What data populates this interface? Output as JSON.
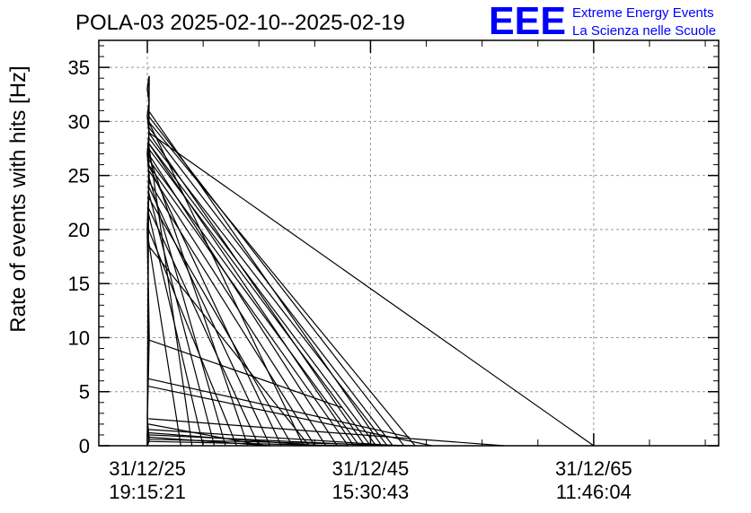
{
  "chart_data": {
    "type": "line",
    "title": "POLA-03 2025-02-10--2025-02-19",
    "ylabel": "Rate of events with hits [Hz]",
    "xlabel": "",
    "ylim": [
      0,
      37.5
    ],
    "yticks": [
      0,
      5,
      10,
      15,
      20,
      25,
      30,
      35
    ],
    "xlim_years": [
      2020.65,
      2076.2
    ],
    "xticks": [
      {
        "year": 2025,
        "date": "31/12/25",
        "time": "19:15:21"
      },
      {
        "year": 2045,
        "date": "31/12/45",
        "time": "15:30:43"
      },
      {
        "year": 2065,
        "date": "31/12/65",
        "time": "11:46:04"
      }
    ],
    "grid": true,
    "grid_style": "dashed",
    "line_color": "#000000",
    "series_note": "",
    "spike": {
      "x_year": 2025.0,
      "values": [
        0,
        34.2,
        33.0,
        31.8,
        30.5,
        29.0,
        27.0,
        25.0,
        20.0,
        10.0,
        2.5,
        0.5,
        0
      ]
    },
    "segments": [
      {
        "x0": 2025.1,
        "y0": 29.0,
        "x1": 2065.0,
        "y1": 0
      },
      {
        "x0": 2025.1,
        "y0": 30.0,
        "x1": 2049.0,
        "y1": 0
      },
      {
        "x0": 2025.1,
        "y0": 30.5,
        "x1": 2048.0,
        "y1": 0
      },
      {
        "x0": 2025.1,
        "y0": 29.5,
        "x1": 2047.0,
        "y1": 0
      },
      {
        "x0": 2025.1,
        "y0": 28.5,
        "x1": 2046.5,
        "y1": 0
      },
      {
        "x0": 2025.1,
        "y0": 31.0,
        "x1": 2046.0,
        "y1": 0
      },
      {
        "x0": 2025.1,
        "y0": 28.0,
        "x1": 2045.5,
        "y1": 0
      },
      {
        "x0": 2025.1,
        "y0": 27.5,
        "x1": 2045.0,
        "y1": 0
      },
      {
        "x0": 2025.1,
        "y0": 29.0,
        "x1": 2044.5,
        "y1": 0
      },
      {
        "x0": 2025.1,
        "y0": 26.5,
        "x1": 2044.0,
        "y1": 0
      },
      {
        "x0": 2025.1,
        "y0": 28.0,
        "x1": 2043.5,
        "y1": 0
      },
      {
        "x0": 2025.1,
        "y0": 26.0,
        "x1": 2043.0,
        "y1": 0
      },
      {
        "x0": 2025.1,
        "y0": 27.0,
        "x1": 2042.0,
        "y1": 0
      },
      {
        "x0": 2025.1,
        "y0": 25.5,
        "x1": 2041.0,
        "y1": 0
      },
      {
        "x0": 2025.1,
        "y0": 24.5,
        "x1": 2040.0,
        "y1": 0
      },
      {
        "x0": 2025.1,
        "y0": 30.0,
        "x1": 2039.0,
        "y1": 0
      },
      {
        "x0": 2025.1,
        "y0": 23.0,
        "x1": 2038.0,
        "y1": 0
      },
      {
        "x0": 2025.1,
        "y0": 26.0,
        "x1": 2037.0,
        "y1": 0
      },
      {
        "x0": 2025.1,
        "y0": 24.0,
        "x1": 2036.0,
        "y1": 0
      },
      {
        "x0": 2025.1,
        "y0": 22.0,
        "x1": 2035.0,
        "y1": 0
      },
      {
        "x0": 2025.1,
        "y0": 27.0,
        "x1": 2034.0,
        "y1": 0
      },
      {
        "x0": 2025.1,
        "y0": 20.0,
        "x1": 2033.0,
        "y1": 0
      },
      {
        "x0": 2025.1,
        "y0": 25.0,
        "x1": 2032.0,
        "y1": 0
      },
      {
        "x0": 2025.1,
        "y0": 23.5,
        "x1": 2031.0,
        "y1": 0
      },
      {
        "x0": 2025.1,
        "y0": 21.5,
        "x1": 2030.0,
        "y1": 0
      },
      {
        "x0": 2025.1,
        "y0": 28.0,
        "x1": 2029.0,
        "y1": 0
      },
      {
        "x0": 2025.1,
        "y0": 19.0,
        "x1": 2028.0,
        "y1": 0
      },
      {
        "x0": 2025.1,
        "y0": 18.5,
        "x1": 2039.5,
        "y1": 0
      },
      {
        "x0": 2025.1,
        "y0": 9.8,
        "x1": 2042.5,
        "y1": 3.5
      },
      {
        "x0": 2025.1,
        "y0": 6.2,
        "x1": 2048.5,
        "y1": 0.8
      },
      {
        "x0": 2025.1,
        "y0": 5.5,
        "x1": 2050.5,
        "y1": 0
      },
      {
        "x0": 2025.1,
        "y0": 2.5,
        "x1": 2057.0,
        "y1": 0
      },
      {
        "x0": 2025.1,
        "y0": 2.0,
        "x1": 2035.5,
        "y1": 0
      },
      {
        "x0": 2025.1,
        "y0": 1.5,
        "x1": 2047.5,
        "y1": 0
      },
      {
        "x0": 2025.1,
        "y0": 1.2,
        "x1": 2040.5,
        "y1": 0
      },
      {
        "x0": 2025.1,
        "y0": 1.0,
        "x1": 2046.0,
        "y1": 0
      },
      {
        "x0": 2025.1,
        "y0": 0.8,
        "x1": 2036.0,
        "y1": 0
      },
      {
        "x0": 2025.1,
        "y0": 0.6,
        "x1": 2049.0,
        "y1": 0
      },
      {
        "x0": 2025.1,
        "y0": 0.4,
        "x1": 2043.0,
        "y1": 0
      }
    ]
  },
  "logo": {
    "mark": "EEE",
    "line1": "Extreme Energy Events",
    "line2": "La Scienza nelle Scuole",
    "color": "#0000ff"
  }
}
